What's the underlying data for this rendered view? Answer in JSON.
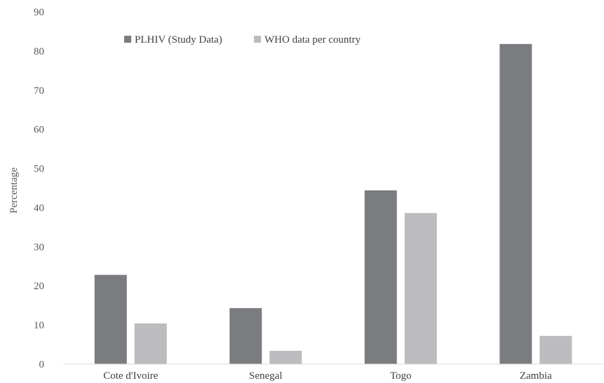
{
  "chart_data": {
    "type": "bar",
    "title": "",
    "xlabel": "",
    "ylabel": "Percentage",
    "ylim": [
      0,
      90
    ],
    "yticks": [
      0,
      10,
      20,
      30,
      40,
      50,
      60,
      70,
      80,
      90
    ],
    "grid": false,
    "legend_position": "top-left",
    "categories": [
      "Cote d'Ivoire",
      "Senegal",
      "Togo",
      "Zambia"
    ],
    "series": [
      {
        "name": "PLHIV (Study Data)",
        "color": "#7b7c80",
        "values": [
          22.8,
          14.3,
          44.4,
          81.8
        ]
      },
      {
        "name": "WHO data per country",
        "color": "#bcbcbf",
        "values": [
          10.4,
          3.4,
          38.6,
          7.2
        ]
      }
    ]
  }
}
